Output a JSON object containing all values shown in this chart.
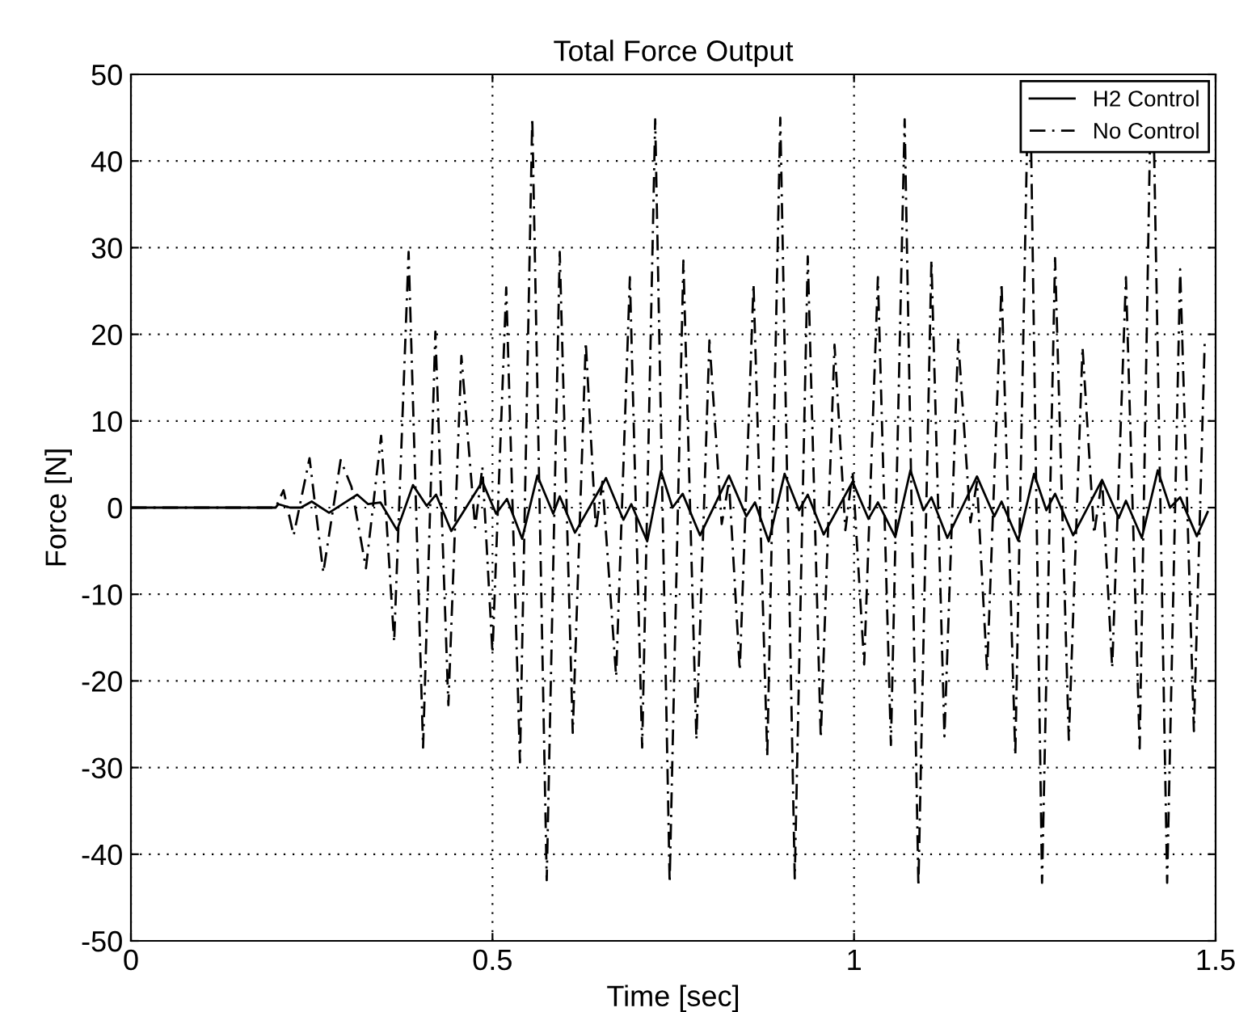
{
  "chart_data": {
    "type": "line",
    "title": "Total Force Output",
    "xlabel": "Time [sec]",
    "ylabel": "Force [N]",
    "xlim": [
      0,
      1.5
    ],
    "ylim": [
      -50,
      50
    ],
    "xticks": [
      0,
      0.5,
      1,
      1.5
    ],
    "yticks": [
      -50,
      -40,
      -30,
      -20,
      -10,
      0,
      10,
      20,
      30,
      40,
      50
    ],
    "grid": true,
    "legend": "top right",
    "marker": "none",
    "series": [
      {
        "name": "H2 Control",
        "color": "#000000",
        "line_style": "solid",
        "x": [
          0,
          0.2,
          0.204,
          0.22,
          0.235,
          0.25,
          0.274,
          0.313,
          0.328,
          0.345,
          0.368,
          0.39,
          0.409,
          0.422,
          0.443,
          0.486,
          0.505,
          0.52,
          0.541,
          0.562,
          0.584,
          0.593,
          0.614,
          0.657,
          0.681,
          0.692,
          0.714,
          0.733,
          0.749,
          0.763,
          0.787,
          0.827,
          0.851,
          0.863,
          0.882,
          0.904,
          0.924,
          0.936,
          0.958,
          0.998,
          1.02,
          1.033,
          1.057,
          1.078,
          1.096,
          1.107,
          1.129,
          1.17,
          1.194,
          1.204,
          1.227,
          1.249,
          1.266,
          1.278,
          1.303,
          1.343,
          1.366,
          1.376,
          1.398,
          1.42,
          1.437,
          1.451,
          1.474,
          1.489
        ],
        "values": [
          0,
          0,
          0.4,
          0,
          0,
          0.7,
          -0.6,
          1.5,
          0.4,
          0.6,
          -2.6,
          2.6,
          0.2,
          1.5,
          -2.7,
          3,
          -0.7,
          1,
          -3.6,
          3.7,
          -0.7,
          1.3,
          -2.9,
          3.4,
          -1.4,
          0.4,
          -3.9,
          4.2,
          0,
          1.6,
          -3.2,
          3.7,
          -1,
          0.6,
          -3.9,
          3.9,
          -0.3,
          1.5,
          -3.1,
          3,
          -1.3,
          0.6,
          -3.4,
          4.3,
          -0.3,
          1.2,
          -3.5,
          3.6,
          -1,
          0.7,
          -3.8,
          3.9,
          -0.3,
          1.6,
          -3.2,
          3.2,
          -1.2,
          0.8,
          -3.5,
          4.3,
          0,
          1.2,
          -3.3,
          -0.5
        ]
      },
      {
        "name": "No Control",
        "color": "#000000",
        "line_style": "dashed",
        "x": [
          0,
          0.2,
          0.211,
          0.225,
          0.247,
          0.266,
          0.29,
          0.305,
          0.325,
          0.346,
          0.364,
          0.384,
          0.404,
          0.421,
          0.439,
          0.457,
          0.476,
          0.486,
          0.5,
          0.519,
          0.538,
          0.555,
          0.575,
          0.593,
          0.611,
          0.629,
          0.643,
          0.652,
          0.671,
          0.69,
          0.707,
          0.725,
          0.745,
          0.764,
          0.782,
          0.8,
          0.817,
          0.827,
          0.842,
          0.861,
          0.88,
          0.898,
          0.918,
          0.936,
          0.954,
          0.973,
          0.988,
          0.998,
          1.014,
          1.033,
          1.051,
          1.07,
          1.089,
          1.107,
          1.125,
          1.144,
          1.161,
          1.17,
          1.184,
          1.204,
          1.223,
          1.239,
          1.242,
          1.245,
          1.26,
          1.278,
          1.297,
          1.316,
          1.332,
          1.343,
          1.357,
          1.376,
          1.395,
          1.409,
          1.412,
          1.415,
          1.433,
          1.451,
          1.47,
          1.485
        ],
        "values": [
          0,
          0,
          2,
          -3.2,
          5.7,
          -7.5,
          5.5,
          2.4,
          -7,
          8.3,
          -15.5,
          29.5,
          -27.7,
          20.3,
          -22.8,
          17.5,
          -2.3,
          4.7,
          -16.8,
          25.4,
          -29.4,
          45,
          -43,
          29.5,
          -26,
          19.1,
          -2.6,
          3,
          -19.5,
          26.6,
          -27.7,
          44.8,
          -43.3,
          28.5,
          -26.8,
          19.3,
          -1.9,
          3,
          -18.8,
          25.8,
          -28.7,
          45,
          -42.8,
          29,
          -26.6,
          18.8,
          -2.6,
          4.2,
          -18.1,
          26.6,
          -27.4,
          44.8,
          -43.7,
          28.6,
          -26.4,
          19.4,
          -1.7,
          3,
          -18.9,
          25.9,
          -28.6,
          41,
          null,
          41,
          -43.3,
          28.8,
          -26.8,
          18.5,
          -3,
          3.3,
          -18.5,
          26.6,
          -27.8,
          41,
          null,
          41,
          -43.3,
          27.5,
          -25.8,
          19.3
        ]
      }
    ]
  }
}
